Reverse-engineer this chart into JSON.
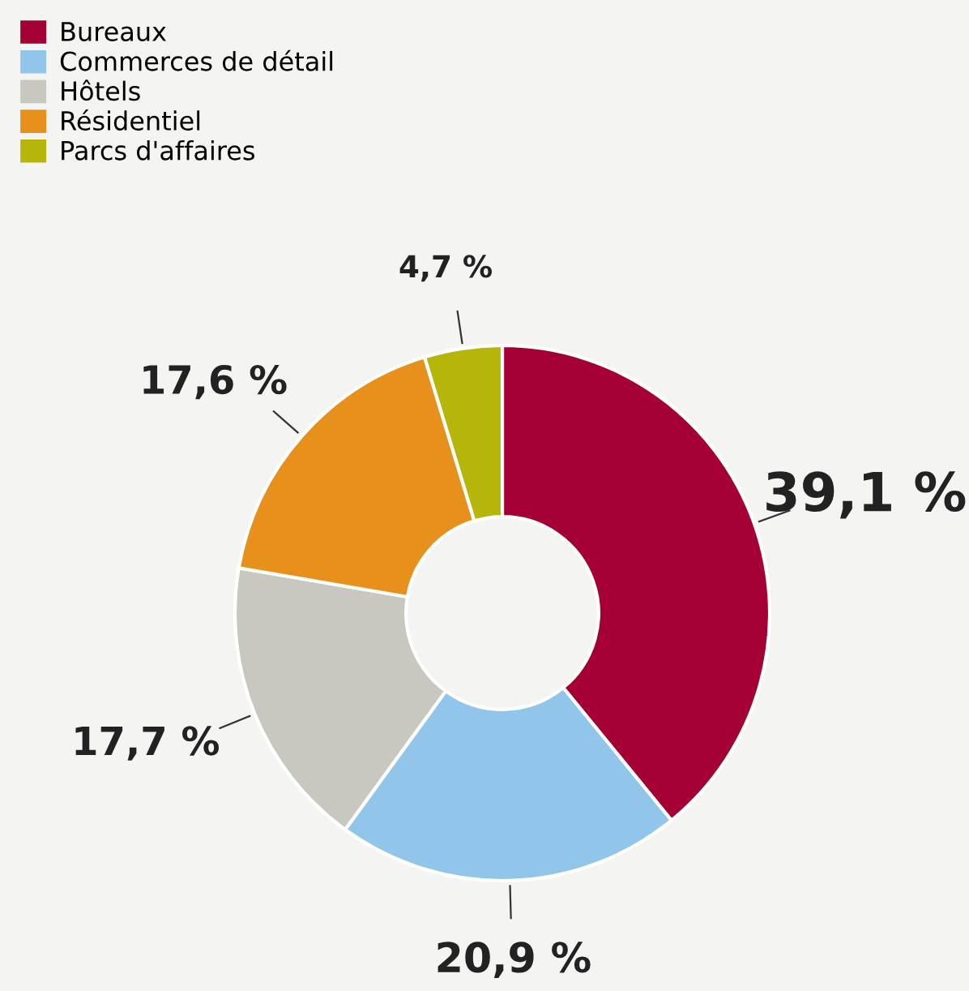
{
  "chart_data": {
    "type": "donut",
    "categories": [
      "Bureaux",
      "Commerces de détail",
      "Hôtels",
      "Résidentiel",
      "Parcs d'affaires"
    ],
    "values": [
      39.1,
      20.9,
      17.7,
      17.6,
      4.7
    ],
    "colors": [
      "#a50034",
      "#92c5ea",
      "#c9c8c0",
      "#e8901c",
      "#b5b50a"
    ],
    "value_labels": [
      "39,1 %",
      "20,9 %",
      "17,7 %",
      "17,6 %",
      "4,7 %"
    ],
    "legend": "top left"
  }
}
